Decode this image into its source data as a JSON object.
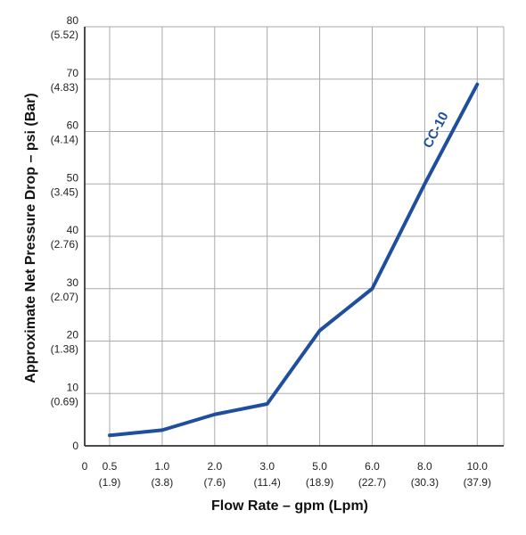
{
  "chart_data": {
    "type": "line",
    "xlabel": "Flow Rate – gpm (Lpm)",
    "ylabel": "Approximate Net Pressure Drop – psi (Bar)",
    "origin_label": "0",
    "categories": [
      {
        "gpm": "0.5",
        "lpm": "(1.9)"
      },
      {
        "gpm": "1.0",
        "lpm": "(3.8)"
      },
      {
        "gpm": "2.0",
        "lpm": "(7.6)"
      },
      {
        "gpm": "3.0",
        "lpm": "(11.4)"
      },
      {
        "gpm": "5.0",
        "lpm": "(18.9)"
      },
      {
        "gpm": "6.0",
        "lpm": "(22.7)"
      },
      {
        "gpm": "8.0",
        "lpm": "(30.3)"
      },
      {
        "gpm": "10.0",
        "lpm": "(37.9)"
      }
    ],
    "y_ticks": [
      {
        "psi": "0",
        "bar": ""
      },
      {
        "psi": "10",
        "bar": "(0.69)"
      },
      {
        "psi": "20",
        "bar": "(1.38)"
      },
      {
        "psi": "30",
        "bar": "(2.07)"
      },
      {
        "psi": "40",
        "bar": "(2.76)"
      },
      {
        "psi": "50",
        "bar": "(3.45)"
      },
      {
        "psi": "60",
        "bar": "(4.14)"
      },
      {
        "psi": "70",
        "bar": "(4.83)"
      },
      {
        "psi": "80",
        "bar": "(5.52)"
      }
    ],
    "ylim": [
      0,
      80
    ],
    "grid": true,
    "series": [
      {
        "name": "CC-10",
        "values": [
          2,
          3,
          6,
          8,
          22,
          30,
          50,
          69
        ],
        "color": "#1f4f9c"
      }
    ]
  }
}
